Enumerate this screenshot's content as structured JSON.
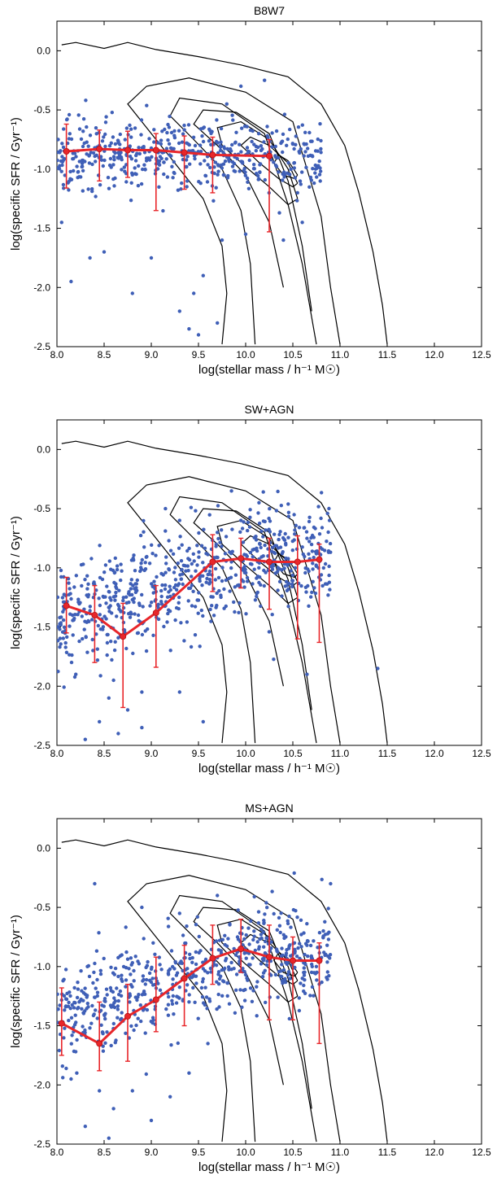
{
  "chart_data": [
    {
      "type": "scatter",
      "title": "B8W7",
      "xlabel": "log(stellar mass / h⁻¹ M☉)",
      "ylabel": "log(specific SFR / Gyr⁻¹)",
      "xlim": [
        8.0,
        12.5
      ],
      "ylim": [
        -2.5,
        0.25
      ],
      "xticks": [
        "8.0",
        "8.5",
        "9.0",
        "9.5",
        "10.0",
        "10.5",
        "11.0",
        "11.5",
        "12.0",
        "12.5"
      ],
      "yticks": [
        "0.0",
        "-0.5",
        "-1.0",
        "-1.5",
        "-2.0",
        "-2.5"
      ],
      "series": [
        {
          "role": "median",
          "color": "#e8262a",
          "x": [
            8.1,
            8.45,
            8.75,
            9.05,
            9.35,
            9.65,
            10.25
          ],
          "y": [
            -0.85,
            -0.83,
            -0.84,
            -0.84,
            -0.86,
            -0.88,
            -0.89
          ],
          "err_low": [
            -1.16,
            -1.1,
            -1.07,
            -1.35,
            -1.17,
            -1.2,
            -1.53
          ],
          "err_high": [
            -0.62,
            -0.67,
            -0.68,
            -0.7,
            -0.72,
            -0.73,
            -0.75
          ]
        }
      ],
      "scatter_points": {
        "color": "#3f5fb7",
        "cloud": {
          "xmin": 8.0,
          "xmax": 10.8,
          "center": -0.88,
          "spread": 0.14,
          "count": 520
        },
        "outliers": [
          [
            8.15,
            -1.95
          ],
          [
            8.35,
            -1.75
          ],
          [
            8.8,
            -2.05
          ],
          [
            9.3,
            -2.2
          ],
          [
            9.45,
            -2.05
          ],
          [
            9.55,
            -1.9
          ],
          [
            9.7,
            -2.3
          ],
          [
            9.5,
            -2.4
          ],
          [
            9.75,
            -1.6
          ],
          [
            10.0,
            -1.55
          ],
          [
            10.4,
            -1.6
          ],
          [
            10.55,
            -1.2
          ],
          [
            10.6,
            -1.45
          ],
          [
            9.95,
            -0.3
          ],
          [
            10.2,
            -0.25
          ],
          [
            9.8,
            -0.45
          ],
          [
            8.05,
            -1.45
          ],
          [
            8.5,
            -1.7
          ],
          [
            9.0,
            -1.75
          ],
          [
            9.4,
            -2.35
          ]
        ]
      },
      "contours": [
        {
          "x": [
            8.05,
            8.2,
            8.5,
            8.75,
            9.05,
            9.5,
            9.95,
            10.45,
            10.8,
            11.05,
            11.2,
            11.35,
            11.45,
            11.5
          ],
          "y": [
            0.05,
            0.07,
            0.02,
            0.07,
            0.01,
            -0.05,
            -0.12,
            -0.22,
            -0.45,
            -0.8,
            -1.2,
            -1.7,
            -2.15,
            -2.48
          ]
        },
        {
          "x": [
            11.0,
            10.9,
            10.8,
            10.5,
            10.0,
            9.4,
            8.95,
            8.75,
            8.95,
            9.2,
            9.55,
            9.75,
            9.8,
            9.75
          ],
          "y": [
            -2.48,
            -2.0,
            -1.4,
            -0.6,
            -0.35,
            -0.23,
            -0.3,
            -0.45,
            -0.65,
            -0.9,
            -1.25,
            -1.65,
            -2.05,
            -2.48
          ]
        },
        {
          "x": [
            10.75,
            10.6,
            10.45,
            10.2,
            9.75,
            9.3,
            9.2,
            9.45,
            9.75,
            9.95,
            10.05,
            10.1
          ],
          "y": [
            -2.48,
            -1.8,
            -1.3,
            -0.7,
            -0.45,
            -0.4,
            -0.55,
            -0.75,
            -1.0,
            -1.35,
            -1.8,
            -2.48
          ]
        },
        {
          "x": [
            10.7,
            10.6,
            10.45,
            10.25,
            9.9,
            9.55,
            9.45,
            9.7,
            10.0,
            10.25,
            10.4
          ],
          "y": [
            -2.2,
            -1.65,
            -1.1,
            -0.7,
            -0.52,
            -0.5,
            -0.62,
            -0.8,
            -1.05,
            -1.45,
            -2.0
          ]
        },
        {
          "x": [
            10.55,
            10.45,
            10.25,
            9.95,
            9.7,
            9.75,
            10.0,
            10.25,
            10.45,
            10.55
          ],
          "y": [
            -1.25,
            -1.0,
            -0.75,
            -0.6,
            -0.65,
            -0.8,
            -0.98,
            -1.15,
            -1.3,
            -1.25
          ]
        },
        {
          "x": [
            10.55,
            10.45,
            10.25,
            10.05,
            9.95,
            10.15,
            10.35,
            10.5,
            10.55
          ],
          "y": [
            -1.12,
            -0.95,
            -0.8,
            -0.73,
            -0.8,
            -0.95,
            -1.08,
            -1.15,
            -1.12
          ]
        },
        {
          "x": [
            10.55,
            10.45,
            10.35,
            10.3,
            10.4,
            10.52,
            10.55
          ],
          "y": [
            -1.05,
            -0.93,
            -0.88,
            -0.95,
            -1.05,
            -1.08,
            -1.05
          ]
        }
      ]
    },
    {
      "type": "scatter",
      "title": "SW+AGN",
      "xlabel": "log(stellar mass / h⁻¹ M☉)",
      "ylabel": "log(specific SFR / Gyr⁻¹)",
      "xlim": [
        8.0,
        12.5
      ],
      "ylim": [
        -2.5,
        0.25
      ],
      "xticks": [
        "8.0",
        "8.5",
        "9.0",
        "9.5",
        "10.0",
        "10.5",
        "11.0",
        "11.5",
        "12.0",
        "12.5"
      ],
      "yticks": [
        "0.0",
        "-0.5",
        "-1.0",
        "-1.5",
        "-2.0",
        "-2.5"
      ],
      "series": [
        {
          "role": "median",
          "color": "#e8262a",
          "x": [
            8.1,
            8.4,
            8.7,
            9.05,
            9.65,
            9.95,
            10.25,
            10.55,
            10.78
          ],
          "y": [
            -1.32,
            -1.4,
            -1.58,
            -1.38,
            -0.95,
            -0.92,
            -0.95,
            -0.95,
            -0.93
          ],
          "err_low": [
            -1.55,
            -1.8,
            -2.18,
            -1.84,
            -1.2,
            -1.17,
            -1.35,
            -1.6,
            -1.63
          ],
          "err_high": [
            -1.08,
            -1.15,
            -1.3,
            -1.15,
            -0.72,
            -0.75,
            -0.75,
            -0.73,
            -0.8
          ]
        }
      ],
      "scatter_points": {
        "color": "#3f5fb7",
        "cloud": {
          "xmin": 8.0,
          "xmax": 10.9,
          "center": -1.2,
          "spread": 0.22,
          "count": 700
        },
        "outliers": [
          [
            8.45,
            -2.3
          ],
          [
            8.55,
            -2.1
          ],
          [
            8.65,
            -2.4
          ],
          [
            8.75,
            -2.2
          ],
          [
            8.9,
            -2.05
          ],
          [
            8.6,
            -1.95
          ],
          [
            9.3,
            -2.05
          ],
          [
            9.55,
            -2.3
          ],
          [
            11.4,
            -1.85
          ],
          [
            9.15,
            -0.5
          ],
          [
            9.3,
            -0.6
          ],
          [
            9.85,
            -0.35
          ],
          [
            9.95,
            -0.6
          ],
          [
            10.15,
            -0.8
          ],
          [
            10.65,
            -1.9
          ],
          [
            8.2,
            -1.9
          ],
          [
            8.3,
            -2.45
          ],
          [
            8.9,
            -2.35
          ]
        ]
      },
      "contours": [
        {
          "x": [
            8.05,
            8.2,
            8.5,
            8.75,
            9.05,
            9.5,
            9.95,
            10.45,
            10.8,
            11.05,
            11.2,
            11.35,
            11.45,
            11.5
          ],
          "y": [
            0.05,
            0.07,
            0.02,
            0.07,
            0.01,
            -0.05,
            -0.12,
            -0.22,
            -0.45,
            -0.8,
            -1.2,
            -1.7,
            -2.15,
            -2.48
          ]
        },
        {
          "x": [
            11.0,
            10.9,
            10.8,
            10.5,
            10.0,
            9.4,
            8.95,
            8.75,
            8.95,
            9.2,
            9.55,
            9.75,
            9.8,
            9.75
          ],
          "y": [
            -2.48,
            -2.0,
            -1.4,
            -0.6,
            -0.35,
            -0.23,
            -0.3,
            -0.45,
            -0.65,
            -0.9,
            -1.25,
            -1.65,
            -2.05,
            -2.48
          ]
        },
        {
          "x": [
            10.75,
            10.6,
            10.45,
            10.2,
            9.75,
            9.3,
            9.2,
            9.45,
            9.75,
            9.95,
            10.05,
            10.1
          ],
          "y": [
            -2.48,
            -1.8,
            -1.3,
            -0.7,
            -0.45,
            -0.4,
            -0.55,
            -0.75,
            -1.0,
            -1.35,
            -1.8,
            -2.48
          ]
        },
        {
          "x": [
            10.7,
            10.6,
            10.45,
            10.25,
            9.9,
            9.55,
            9.45,
            9.7,
            10.0,
            10.25,
            10.4
          ],
          "y": [
            -2.2,
            -1.65,
            -1.1,
            -0.7,
            -0.52,
            -0.5,
            -0.62,
            -0.8,
            -1.05,
            -1.45,
            -2.0
          ]
        },
        {
          "x": [
            10.55,
            10.45,
            10.25,
            9.95,
            9.7,
            9.75,
            10.0,
            10.25,
            10.45,
            10.55
          ],
          "y": [
            -1.25,
            -1.0,
            -0.75,
            -0.6,
            -0.65,
            -0.8,
            -0.98,
            -1.15,
            -1.3,
            -1.25
          ]
        },
        {
          "x": [
            10.55,
            10.45,
            10.25,
            10.05,
            9.95,
            10.15,
            10.35,
            10.5,
            10.55
          ],
          "y": [
            -1.12,
            -0.95,
            -0.8,
            -0.73,
            -0.8,
            -0.95,
            -1.08,
            -1.15,
            -1.12
          ]
        },
        {
          "x": [
            10.55,
            10.45,
            10.35,
            10.3,
            10.4,
            10.52,
            10.55
          ],
          "y": [
            -1.05,
            -0.93,
            -0.88,
            -0.95,
            -1.05,
            -1.08,
            -1.05
          ]
        }
      ]
    },
    {
      "type": "scatter",
      "title": "MS+AGN",
      "xlabel": "log(stellar mass / h⁻¹ M☉)",
      "ylabel": "log(specific SFR / Gyr⁻¹)",
      "xlim": [
        8.0,
        12.5
      ],
      "ylim": [
        -2.5,
        0.25
      ],
      "xticks": [
        "8.0",
        "8.5",
        "9.0",
        "9.5",
        "10.0",
        "10.5",
        "11.0",
        "11.5",
        "12.0",
        "12.5"
      ],
      "yticks": [
        "0.0",
        "-0.5",
        "-1.0",
        "-1.5",
        "-2.0",
        "-2.5"
      ],
      "series": [
        {
          "role": "median",
          "color": "#e8262a",
          "x": [
            8.05,
            8.45,
            8.75,
            9.05,
            9.35,
            9.65,
            9.95,
            10.25,
            10.5,
            10.78
          ],
          "y": [
            -1.48,
            -1.65,
            -1.42,
            -1.28,
            -1.1,
            -0.93,
            -0.85,
            -0.92,
            -0.95,
            -0.95
          ],
          "err_low": [
            -1.75,
            -1.88,
            -1.8,
            -1.55,
            -1.5,
            -1.15,
            -1.05,
            -1.45,
            -1.45,
            -1.65
          ],
          "err_high": [
            -1.18,
            -1.3,
            -1.15,
            -0.92,
            -0.82,
            -0.65,
            -0.6,
            -0.65,
            -0.75,
            -0.8
          ]
        }
      ],
      "scatter_points": {
        "color": "#3f5fb7",
        "cloud": {
          "xmin": 8.0,
          "xmax": 10.9,
          "center": -1.2,
          "spread": 0.2,
          "count": 640
        },
        "outliers": [
          [
            8.45,
            -2.05
          ],
          [
            8.6,
            -2.2
          ],
          [
            8.8,
            -2.05
          ],
          [
            8.3,
            -2.35
          ],
          [
            8.55,
            -2.45
          ],
          [
            9.2,
            -2.1
          ],
          [
            9.4,
            -1.9
          ],
          [
            9.6,
            -1.65
          ],
          [
            10.9,
            -0.3
          ],
          [
            8.9,
            -0.5
          ],
          [
            9.3,
            -0.55
          ],
          [
            9.7,
            -0.4
          ],
          [
            8.15,
            -1.95
          ],
          [
            8.4,
            -0.3
          ],
          [
            9.0,
            -2.3
          ]
        ]
      },
      "contours": [
        {
          "x": [
            8.05,
            8.2,
            8.5,
            8.75,
            9.05,
            9.5,
            9.95,
            10.45,
            10.8,
            11.05,
            11.2,
            11.35,
            11.45,
            11.5
          ],
          "y": [
            0.05,
            0.07,
            0.02,
            0.07,
            0.01,
            -0.05,
            -0.12,
            -0.22,
            -0.45,
            -0.8,
            -1.2,
            -1.7,
            -2.15,
            -2.48
          ]
        },
        {
          "x": [
            11.0,
            10.9,
            10.8,
            10.5,
            10.0,
            9.4,
            8.95,
            8.75,
            8.95,
            9.2,
            9.55,
            9.75,
            9.8,
            9.75
          ],
          "y": [
            -2.48,
            -2.0,
            -1.4,
            -0.6,
            -0.35,
            -0.23,
            -0.3,
            -0.45,
            -0.65,
            -0.9,
            -1.25,
            -1.65,
            -2.05,
            -2.48
          ]
        },
        {
          "x": [
            10.75,
            10.6,
            10.45,
            10.2,
            9.75,
            9.3,
            9.2,
            9.45,
            9.75,
            9.95,
            10.05,
            10.1
          ],
          "y": [
            -2.48,
            -1.8,
            -1.3,
            -0.7,
            -0.45,
            -0.4,
            -0.55,
            -0.75,
            -1.0,
            -1.35,
            -1.8,
            -2.48
          ]
        },
        {
          "x": [
            10.7,
            10.6,
            10.45,
            10.25,
            9.9,
            9.55,
            9.45,
            9.7,
            10.0,
            10.25,
            10.4
          ],
          "y": [
            -2.2,
            -1.65,
            -1.1,
            -0.7,
            -0.52,
            -0.5,
            -0.62,
            -0.8,
            -1.05,
            -1.45,
            -2.0
          ]
        },
        {
          "x": [
            10.55,
            10.45,
            10.25,
            9.95,
            9.7,
            9.75,
            10.0,
            10.25,
            10.45,
            10.55
          ],
          "y": [
            -1.25,
            -1.0,
            -0.75,
            -0.6,
            -0.65,
            -0.8,
            -0.98,
            -1.15,
            -1.3,
            -1.25
          ]
        },
        {
          "x": [
            10.55,
            10.45,
            10.25,
            10.05,
            9.95,
            10.15,
            10.35,
            10.5,
            10.55
          ],
          "y": [
            -1.12,
            -0.95,
            -0.8,
            -0.73,
            -0.8,
            -0.95,
            -1.08,
            -1.15,
            -1.12
          ]
        },
        {
          "x": [
            10.55,
            10.45,
            10.35,
            10.3,
            10.4,
            10.52,
            10.55
          ],
          "y": [
            -1.05,
            -0.93,
            -0.88,
            -0.95,
            -1.05,
            -1.08,
            -1.05
          ]
        }
      ]
    }
  ]
}
